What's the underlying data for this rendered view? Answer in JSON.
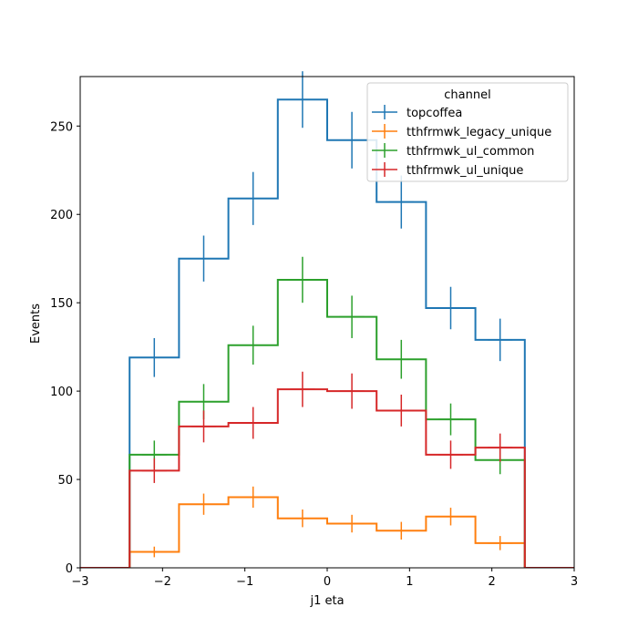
{
  "chart_data": {
    "type": "histogram-step",
    "xlabel": "j1 eta",
    "ylabel": "Events",
    "xlim": [
      -3,
      3
    ],
    "ylim": [
      0,
      278
    ],
    "xticks": [
      -3,
      -2,
      -1,
      0,
      1,
      2,
      3
    ],
    "xtick_labels": [
      "−3",
      "−2",
      "−1",
      "0",
      "1",
      "2",
      "3"
    ],
    "yticks": [
      0,
      50,
      100,
      150,
      200,
      250
    ],
    "ytick_labels": [
      "0",
      "50",
      "100",
      "150",
      "200",
      "250"
    ],
    "bin_edges": [
      -3.0,
      -2.4,
      -1.8,
      -1.2,
      -0.6,
      0.0,
      0.6,
      1.2,
      1.8,
      2.4,
      3.0
    ],
    "legend": {
      "title": "channel",
      "position": "upper right"
    },
    "series": [
      {
        "name": "topcoffea",
        "color": "#1f77b4",
        "values": [
          0,
          119,
          175,
          209,
          265,
          242,
          207,
          147,
          129,
          0
        ],
        "errors": [
          0,
          11,
          13,
          15,
          16,
          16,
          15,
          12,
          12,
          0
        ]
      },
      {
        "name": "tthfrmwk_legacy_unique",
        "color": "#ff7f0e",
        "values": [
          0,
          9,
          36,
          40,
          28,
          25,
          21,
          29,
          14,
          0
        ],
        "errors": [
          0,
          3,
          6,
          6,
          5,
          5,
          5,
          5,
          4,
          0
        ]
      },
      {
        "name": "tthfrmwk_ul_common",
        "color": "#2ca02c",
        "values": [
          0,
          64,
          94,
          126,
          163,
          142,
          118,
          84,
          61,
          0
        ],
        "errors": [
          0,
          8,
          10,
          11,
          13,
          12,
          11,
          9,
          8,
          0
        ]
      },
      {
        "name": "tthfrmwk_ul_unique",
        "color": "#d62728",
        "values": [
          0,
          55,
          80,
          82,
          101,
          100,
          89,
          64,
          68,
          0
        ],
        "errors": [
          0,
          7,
          9,
          9,
          10,
          10,
          9,
          8,
          8,
          0
        ]
      }
    ]
  }
}
